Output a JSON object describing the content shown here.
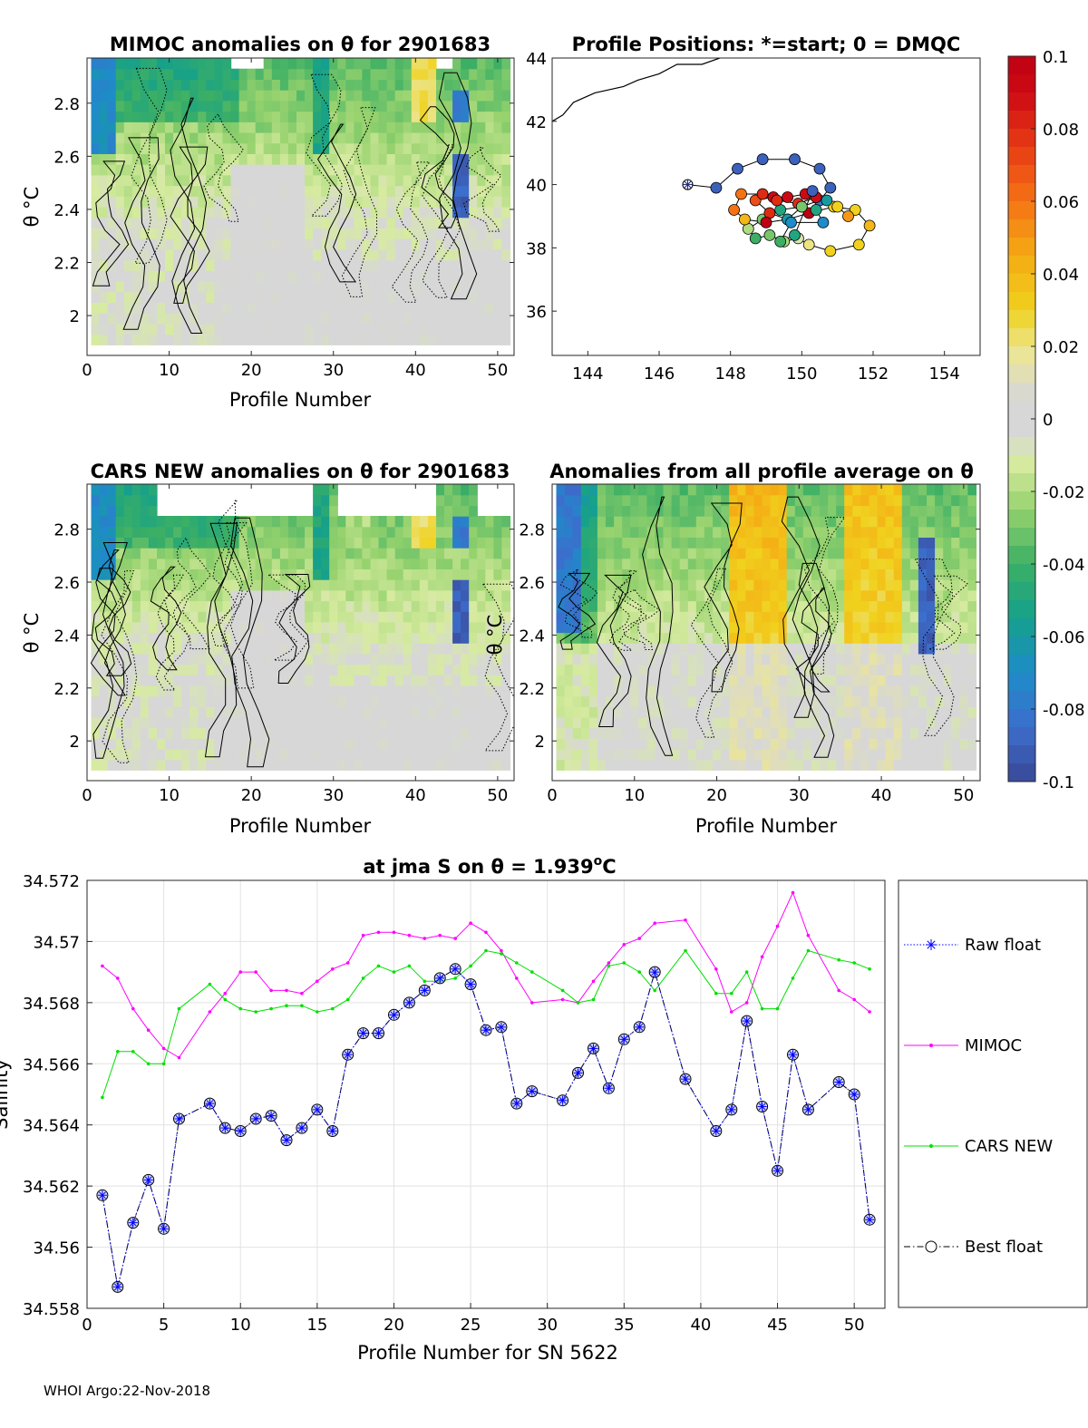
{
  "footer": "WHOI Argo:22-Nov-2018",
  "colorbar": {
    "ticks": [
      "0.1",
      "0.08",
      "0.06",
      "0.04",
      "0.02",
      "0",
      "-0.02",
      "-0.04",
      "-0.06",
      "-0.08",
      "-0.1"
    ],
    "range": [
      -0.1,
      0.1
    ]
  },
  "chart_data": [
    {
      "id": "mimoc_anom",
      "type": "heatmap",
      "title": "MIMOC anomalies on θ  for 2901683",
      "xlabel": "Profile Number",
      "ylabel": "θ °C",
      "xlim": [
        0,
        52
      ],
      "ylim": [
        1.85,
        2.97
      ],
      "xticks": [
        "0",
        "10",
        "20",
        "30",
        "40",
        "50"
      ],
      "yticks": [
        "2",
        "2.2",
        "2.4",
        "2.6",
        "2.8"
      ]
    },
    {
      "id": "positions",
      "type": "scatter",
      "title": "Profile Positions: *=start; 0 = DMQC",
      "xlim": [
        143,
        155
      ],
      "ylim": [
        34.6,
        44
      ],
      "xticks": [
        "144",
        "146",
        "148",
        "150",
        "152",
        "154"
      ],
      "yticks": [
        "36",
        "38",
        "40",
        "42",
        "44"
      ],
      "track": [
        [
          146.8,
          40.0
        ],
        [
          147.6,
          39.9
        ],
        [
          148.2,
          40.5
        ],
        [
          148.9,
          40.8
        ],
        [
          149.8,
          40.8
        ],
        [
          150.5,
          40.5
        ],
        [
          150.8,
          39.9
        ],
        [
          150.5,
          39.5
        ],
        [
          150.0,
          39.3
        ],
        [
          149.4,
          39.2
        ],
        [
          148.9,
          38.9
        ],
        [
          148.5,
          38.6
        ],
        [
          148.7,
          38.3
        ],
        [
          149.1,
          38.4
        ],
        [
          149.5,
          38.2
        ],
        [
          149.9,
          38.3
        ],
        [
          150.2,
          38.1
        ],
        [
          150.8,
          37.9
        ],
        [
          151.6,
          38.1
        ],
        [
          151.9,
          38.7
        ],
        [
          151.5,
          39.2
        ],
        [
          150.9,
          39.3
        ],
        [
          150.2,
          39.1
        ],
        [
          149.6,
          38.9
        ],
        [
          149.1,
          39.1
        ],
        [
          148.7,
          39.5
        ],
        [
          149.2,
          39.6
        ],
        [
          149.6,
          39.6
        ],
        [
          150.1,
          39.7
        ],
        [
          150.4,
          39.6
        ],
        [
          149.9,
          39.4
        ],
        [
          149.3,
          39.5
        ],
        [
          148.9,
          39.7
        ],
        [
          148.3,
          39.7
        ],
        [
          148.1,
          39.2
        ],
        [
          148.4,
          38.9
        ],
        [
          149.0,
          38.8
        ],
        [
          149.6,
          38.9
        ],
        [
          150.0,
          39.3
        ],
        [
          150.4,
          39.2
        ],
        [
          150.6,
          38.8
        ],
        [
          149.7,
          38.8
        ],
        [
          149.4,
          38.2
        ],
        [
          149.8,
          38.4
        ],
        [
          150.3,
          39.8
        ],
        [
          150.7,
          39.5
        ],
        [
          151.0,
          39.3
        ],
        [
          151.3,
          39.0
        ]
      ],
      "values": [
        -0.08,
        -0.09,
        -0.09,
        -0.09,
        -0.09,
        -0.09,
        -0.09,
        -0.08,
        -0.07,
        -0.05,
        -0.03,
        -0.02,
        -0.04,
        -0.03,
        -0.02,
        -0.01,
        0.02,
        0.03,
        0.03,
        0.04,
        0.03,
        0.03,
        0.1,
        0.1,
        0.08,
        0.07,
        0.09,
        0.09,
        0.09,
        0.09,
        0.08,
        0.08,
        0.08,
        0.06,
        0.06,
        0.04,
        0.1,
        -0.06,
        -0.03,
        -0.05,
        -0.07,
        -0.07,
        -0.04,
        -0.05,
        -0.09,
        -0.06,
        0.03,
        0.05
      ],
      "coast": [
        [
          143.0,
          42.0
        ],
        [
          143.3,
          42.2
        ],
        [
          143.6,
          42.6
        ],
        [
          144.2,
          42.9
        ],
        [
          145.0,
          43.1
        ],
        [
          145.4,
          43.3
        ],
        [
          146.0,
          43.5
        ],
        [
          146.5,
          43.8
        ],
        [
          147.2,
          43.8
        ],
        [
          147.7,
          44.0
        ]
      ]
    },
    {
      "id": "cars_anom",
      "type": "heatmap",
      "title": "CARS NEW anomalies on θ for 2901683",
      "xlabel": "Profile Number",
      "ylabel": "θ °C",
      "xlim": [
        0,
        52
      ],
      "ylim": [
        1.85,
        2.97
      ],
      "xticks": [
        "0",
        "10",
        "20",
        "30",
        "40",
        "50"
      ],
      "yticks": [
        "2",
        "2.2",
        "2.4",
        "2.6",
        "2.8"
      ]
    },
    {
      "id": "avg_anom",
      "type": "heatmap",
      "title": "Anomalies from all profile average on θ",
      "xlabel": "Profile Number",
      "ylabel": "θ °C",
      "xlim": [
        0,
        52
      ],
      "ylim": [
        1.85,
        2.97
      ],
      "xticks": [
        "0",
        "10",
        "20",
        "30",
        "40",
        "50"
      ],
      "yticks": [
        "2",
        "2.2",
        "2.4",
        "2.6",
        "2.8"
      ]
    },
    {
      "id": "salinity",
      "type": "line",
      "title": "at jma S on θ = 1.939",
      "title_sup": "o",
      "title_unit": "C",
      "xlabel": "Profile Number for SN 5622",
      "ylabel": "Salinity",
      "xlim": [
        0,
        52
      ],
      "ylim": [
        34.558,
        34.572
      ],
      "xticks": [
        "0",
        "5",
        "10",
        "15",
        "20",
        "25",
        "30",
        "35",
        "40",
        "45",
        "50"
      ],
      "yticks": [
        "34.558",
        "34.56",
        "34.562",
        "34.564",
        "34.566",
        "34.568",
        "34.57",
        "34.572"
      ],
      "x": [
        1,
        2,
        3,
        4,
        5,
        6,
        8,
        9,
        10,
        11,
        12,
        13,
        14,
        15,
        16,
        17,
        18,
        19,
        20,
        21,
        22,
        23,
        24,
        25,
        26,
        27,
        28,
        29,
        31,
        32,
        33,
        34,
        35,
        36,
        37,
        39,
        41,
        42,
        43,
        44,
        45,
        46,
        47,
        49,
        50,
        51
      ],
      "series": [
        {
          "name": "Raw float",
          "color": "#0000ff",
          "values": [
            34.5617,
            34.5587,
            34.5608,
            34.5622,
            34.5606,
            34.5642,
            34.5647,
            34.5639,
            34.5638,
            34.5642,
            34.5643,
            34.5635,
            34.5639,
            34.5645,
            34.5638,
            34.5663,
            34.567,
            34.567,
            34.5676,
            34.568,
            34.5684,
            34.5688,
            34.5691,
            34.5686,
            34.5671,
            34.5672,
            34.5647,
            34.5651,
            34.5648,
            34.5657,
            34.5665,
            34.5652,
            34.5668,
            34.5672,
            34.569,
            34.5655,
            34.5638,
            34.5645,
            34.5674,
            34.5646,
            34.5625,
            34.5663,
            34.5645,
            34.5654,
            34.565,
            34.5609
          ]
        },
        {
          "name": "MIMOC",
          "color": "#ff00ff",
          "values": [
            34.5692,
            34.5688,
            34.5678,
            34.5671,
            34.5665,
            34.5662,
            34.5677,
            34.5683,
            34.569,
            34.569,
            34.5684,
            34.5684,
            34.5683,
            34.5687,
            34.5691,
            34.5693,
            34.5702,
            34.5703,
            34.5703,
            34.5702,
            34.5701,
            34.5702,
            34.5701,
            34.5706,
            34.5703,
            34.5697,
            34.5688,
            34.568,
            34.5681,
            34.568,
            34.5687,
            34.5693,
            34.5699,
            34.5701,
            34.5706,
            34.5707,
            34.5691,
            34.5677,
            34.568,
            34.5695,
            34.5705,
            34.5716,
            34.5702,
            34.5684,
            34.5681,
            34.5677
          ]
        },
        {
          "name": "CARS NEW",
          "color": "#00e000",
          "values": [
            34.5649,
            34.5664,
            34.5664,
            34.566,
            34.566,
            34.5678,
            34.5686,
            34.5681,
            34.5678,
            34.5677,
            34.5678,
            34.5679,
            34.5679,
            34.5677,
            34.5678,
            34.5681,
            34.5688,
            34.5692,
            34.569,
            34.5692,
            34.5687,
            34.5687,
            34.5688,
            34.5692,
            34.5697,
            34.5696,
            34.5693,
            34.569,
            34.5684,
            34.568,
            34.5681,
            34.5692,
            34.5693,
            34.569,
            34.5684,
            34.5697,
            34.5683,
            34.5683,
            34.569,
            34.5678,
            34.5678,
            34.5688,
            34.5697,
            34.5694,
            34.5693,
            34.5691
          ]
        },
        {
          "name": "Best float",
          "color": "#000000",
          "values": [
            34.5617,
            34.5587,
            34.5608,
            34.5622,
            34.5606,
            34.5642,
            34.5647,
            34.5639,
            34.5638,
            34.5642,
            34.5643,
            34.5635,
            34.5639,
            34.5645,
            34.5638,
            34.5663,
            34.567,
            34.567,
            34.5676,
            34.568,
            34.5684,
            34.5688,
            34.5691,
            34.5686,
            34.5671,
            34.5672,
            34.5647,
            34.5651,
            34.5648,
            34.5657,
            34.5665,
            34.5652,
            34.5668,
            34.5672,
            34.569,
            34.5655,
            34.5638,
            34.5645,
            34.5674,
            34.5646,
            34.5625,
            34.5663,
            34.5645,
            34.5654,
            34.565,
            34.5609
          ]
        }
      ]
    }
  ]
}
